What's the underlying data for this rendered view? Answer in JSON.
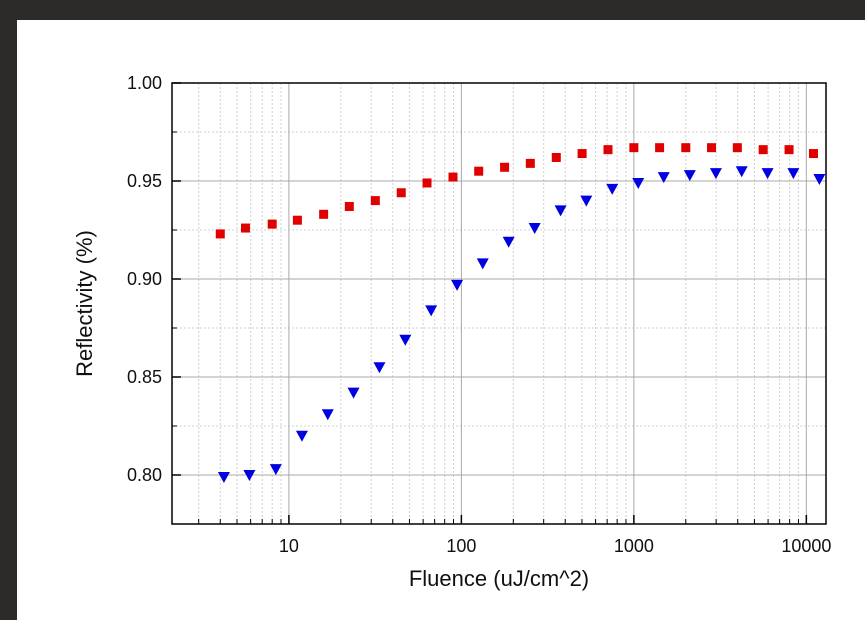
{
  "chart_data": {
    "type": "scatter",
    "title": "",
    "xlabel": "Fluence (uJ/cm^2)",
    "ylabel": "Reflectivity (%)",
    "x_scale": "log",
    "xlim": [
      2.1,
      13000
    ],
    "ylim": [
      0.775,
      1.0
    ],
    "grid": true,
    "legend": "none",
    "x_ticks": [
      10,
      100,
      1000,
      10000
    ],
    "x_tick_labels": [
      "10",
      "100",
      "1000",
      "10000"
    ],
    "y_ticks": [
      0.8,
      0.85,
      0.9,
      0.95,
      1.0
    ],
    "y_tick_labels": [
      "0.80",
      "0.85",
      "0.90",
      "0.95",
      "1.00"
    ],
    "series": [
      {
        "marker": "square",
        "color": "#e00000",
        "points": [
          [
            4.0,
            0.923
          ],
          [
            5.6,
            0.926
          ],
          [
            8.0,
            0.928
          ],
          [
            11.2,
            0.93
          ],
          [
            15.9,
            0.933
          ],
          [
            22.4,
            0.937
          ],
          [
            31.7,
            0.94
          ],
          [
            44.8,
            0.944
          ],
          [
            63.2,
            0.949
          ],
          [
            89.4,
            0.952
          ],
          [
            126,
            0.955
          ],
          [
            178,
            0.957
          ],
          [
            251,
            0.959
          ],
          [
            355,
            0.962
          ],
          [
            501,
            0.964
          ],
          [
            708,
            0.966
          ],
          [
            1000,
            0.967
          ],
          [
            1410,
            0.967
          ],
          [
            2000,
            0.967
          ],
          [
            2820,
            0.967
          ],
          [
            3980,
            0.967
          ],
          [
            5620,
            0.966
          ],
          [
            7940,
            0.966
          ],
          [
            11000,
            0.964
          ]
        ]
      },
      {
        "marker": "triangle-down",
        "color": "#0000e0",
        "points": [
          [
            4.2,
            0.799
          ],
          [
            5.9,
            0.8
          ],
          [
            8.4,
            0.803
          ],
          [
            11.9,
            0.82
          ],
          [
            16.8,
            0.831
          ],
          [
            23.7,
            0.842
          ],
          [
            33.5,
            0.855
          ],
          [
            47.3,
            0.869
          ],
          [
            66.8,
            0.884
          ],
          [
            94.4,
            0.897
          ],
          [
            133,
            0.908
          ],
          [
            188,
            0.919
          ],
          [
            266,
            0.926
          ],
          [
            376,
            0.935
          ],
          [
            530,
            0.94
          ],
          [
            749,
            0.946
          ],
          [
            1060,
            0.949
          ],
          [
            1490,
            0.952
          ],
          [
            2110,
            0.953
          ],
          [
            2990,
            0.954
          ],
          [
            4220,
            0.955
          ],
          [
            5960,
            0.954
          ],
          [
            8410,
            0.954
          ],
          [
            11900,
            0.951
          ]
        ]
      }
    ]
  }
}
